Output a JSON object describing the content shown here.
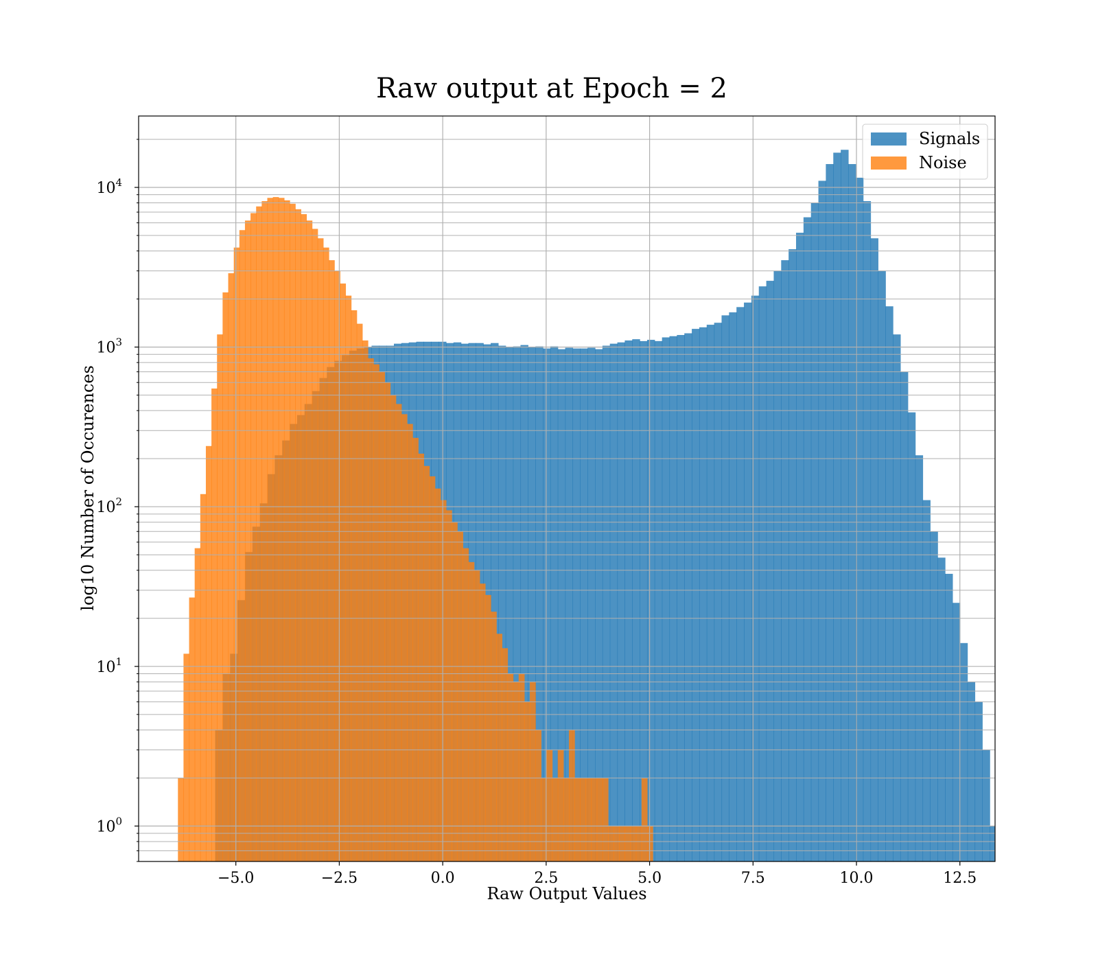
{
  "chart_data": {
    "type": "histogram",
    "title": "Raw output at Epoch = 2",
    "xlabel": "Raw Output Values",
    "ylabel": "log10 Number of Occurences",
    "xlim": [
      -7.35,
      13.35
    ],
    "ylim": [
      0.6,
      28000
    ],
    "yscale": "log",
    "grid": true,
    "grid_minor": true,
    "legend_position": "upper right",
    "x_ticks": [
      -5.0,
      -2.5,
      0.0,
      2.5,
      5.0,
      7.5,
      10.0,
      12.5
    ],
    "x_tick_labels": [
      "−5.0",
      "−2.5",
      "0.0",
      "2.5",
      "5.0",
      "7.5",
      "10.0",
      "12.5"
    ],
    "y_ticks": [
      1,
      10,
      100,
      1000,
      10000
    ],
    "y_tick_labels": [
      {
        "base": "10",
        "exp": "0"
      },
      {
        "base": "10",
        "exp": "1"
      },
      {
        "base": "10",
        "exp": "2"
      },
      {
        "base": "10",
        "exp": "3"
      },
      {
        "base": "10",
        "exp": "4"
      }
    ],
    "series": [
      {
        "name": "Signals",
        "color": "#1f77b4",
        "alpha": 0.8,
        "bin_start": -5.5,
        "bin_width": 0.18,
        "counts": [
          4,
          9,
          12,
          26,
          52,
          75,
          105,
          160,
          210,
          260,
          330,
          375,
          440,
          530,
          640,
          750,
          820,
          890,
          950,
          980,
          1000,
          1020,
          1020,
          1020,
          1050,
          1060,
          1070,
          1080,
          1080,
          1080,
          1080,
          1060,
          1070,
          1050,
          1060,
          1060,
          1040,
          1060,
          1020,
          1000,
          1010,
          1030,
          1000,
          1010,
          980,
          1010,
          970,
          990,
          980,
          980,
          990,
          970,
          1020,
          1050,
          1070,
          1100,
          1120,
          1090,
          1110,
          1090,
          1150,
          1170,
          1190,
          1220,
          1300,
          1330,
          1380,
          1420,
          1580,
          1650,
          1780,
          1900,
          2100,
          2400,
          2600,
          3000,
          3500,
          4100,
          5200,
          6500,
          8000,
          11000,
          14000,
          16500,
          17200,
          14000,
          11500,
          8200,
          4800,
          3000,
          1800,
          1200,
          700,
          390,
          210,
          110,
          70,
          48,
          38,
          25,
          14,
          8,
          6,
          3,
          1
        ]
      },
      {
        "name": "Noise",
        "color": "#ff7f0e",
        "alpha": 0.8,
        "bin_start": -6.4,
        "bin_width": 0.135,
        "counts": [
          2,
          12,
          27,
          55,
          120,
          240,
          550,
          1200,
          2200,
          2900,
          4200,
          5400,
          6200,
          6900,
          7600,
          8200,
          8600,
          8700,
          8600,
          8300,
          7900,
          7300,
          6800,
          6200,
          5500,
          4800,
          4200,
          3500,
          3000,
          2500,
          2100,
          1700,
          1400,
          1100,
          850,
          780,
          700,
          600,
          500,
          440,
          380,
          330,
          270,
          215,
          180,
          155,
          130,
          110,
          95,
          80,
          70,
          55,
          45,
          40,
          33,
          28,
          22,
          16,
          13,
          9,
          8,
          9,
          6,
          8,
          4,
          2,
          3,
          2,
          3,
          2,
          4,
          2,
          2,
          2,
          2,
          2,
          2,
          1,
          1,
          1,
          1,
          1,
          1,
          2,
          1
        ]
      }
    ]
  }
}
